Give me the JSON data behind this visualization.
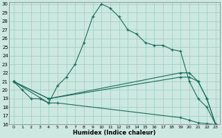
{
  "xlabel": "Humidex (Indice chaleur)",
  "bg_color": "#cce8e0",
  "grid_color": "#99ccbb",
  "line_color": "#1a6b5a",
  "xlim": [
    -0.5,
    23.5
  ],
  "ylim": [
    16,
    30.2
  ],
  "yticks": [
    16,
    17,
    18,
    19,
    20,
    21,
    22,
    23,
    24,
    25,
    26,
    27,
    28,
    29,
    30
  ],
  "xticks": [
    0,
    1,
    2,
    3,
    4,
    5,
    6,
    7,
    8,
    9,
    10,
    11,
    12,
    13,
    14,
    15,
    16,
    17,
    18,
    19,
    20,
    21,
    22,
    23
  ],
  "line1_x": [
    0,
    1,
    2,
    3,
    4,
    5,
    6,
    7,
    8,
    9,
    10,
    11,
    12,
    13,
    14,
    15,
    16,
    17,
    18,
    19,
    20,
    21,
    22,
    23
  ],
  "line1_y": [
    21,
    20,
    19,
    19,
    18.5,
    20.5,
    21.5,
    23,
    25.5,
    28.5,
    30,
    29.5,
    28.5,
    27,
    26.5,
    25.5,
    25.2,
    25.2,
    24.7,
    24.5,
    21,
    19,
    18,
    16
  ],
  "line2_x": [
    0,
    4,
    19,
    20,
    21,
    22,
    23
  ],
  "line2_y": [
    21,
    19,
    22,
    22,
    21,
    19,
    16
  ],
  "line3_x": [
    0,
    4,
    19,
    20,
    21,
    22,
    23
  ],
  "line3_y": [
    21,
    19,
    21.5,
    21.5,
    21,
    19,
    16
  ],
  "line4_x": [
    0,
    4,
    5,
    19,
    20,
    21,
    22,
    23
  ],
  "line4_y": [
    21,
    18.5,
    18.5,
    16.8,
    16.5,
    16.2,
    16.1,
    16
  ]
}
